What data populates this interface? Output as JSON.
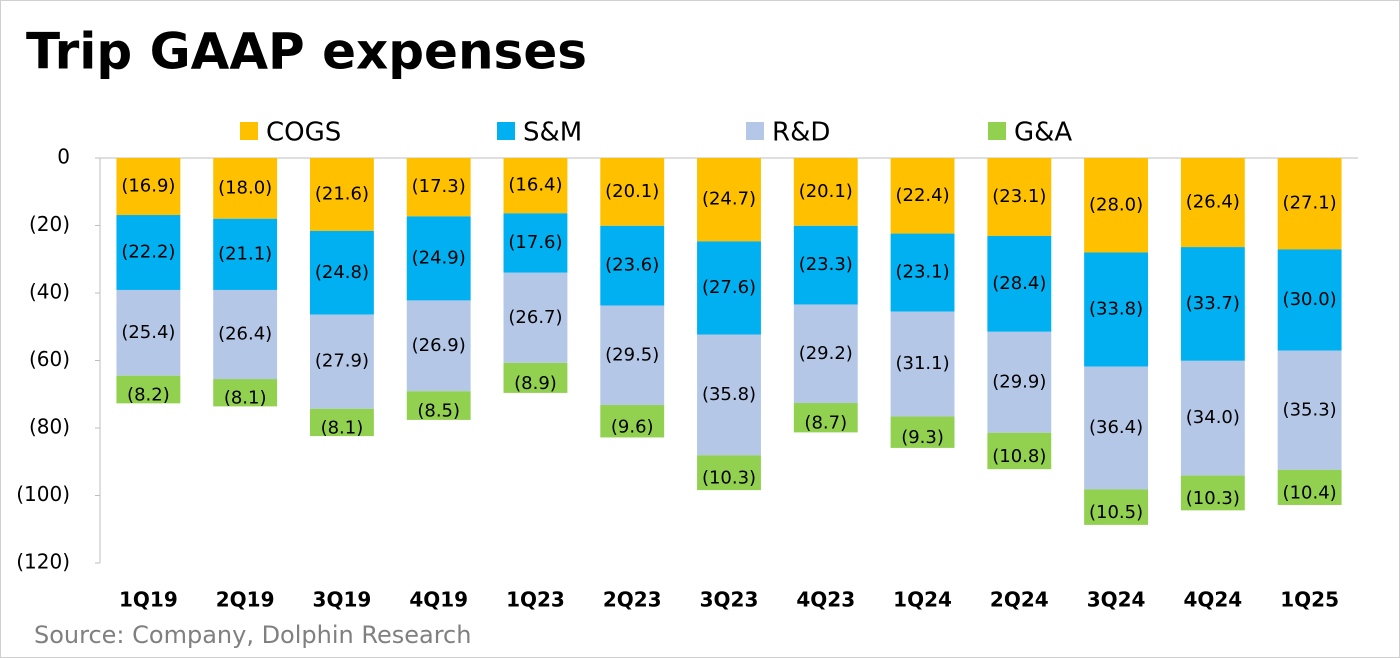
{
  "chart_data": {
    "type": "stacked-bar",
    "title": "Trip GAAP expenses",
    "source": "Source: Company, Dolphin Research",
    "categories": [
      "1Q19",
      "2Q19",
      "3Q19",
      "4Q19",
      "1Q23",
      "2Q23",
      "3Q23",
      "4Q23",
      "1Q24",
      "2Q24",
      "3Q24",
      "4Q24",
      "1Q25"
    ],
    "series": [
      {
        "name": "COGS",
        "color": "#FFC000",
        "values": [
          -16.9,
          -18.0,
          -21.6,
          -17.3,
          -16.4,
          -20.1,
          -24.7,
          -20.1,
          -22.4,
          -23.1,
          -28.0,
          -26.4,
          -27.1
        ],
        "value_labels": [
          "(16.9)",
          "(18.0)",
          "(21.6)",
          "(17.3)",
          "(16.4)",
          "(20.1)",
          "(24.7)",
          "(20.1)",
          "(22.4)",
          "(23.1)",
          "(28.0)",
          "(26.4)",
          "(27.1)"
        ]
      },
      {
        "name": "S&M",
        "color": "#00B0F0",
        "values": [
          -22.2,
          -21.1,
          -24.8,
          -24.9,
          -17.6,
          -23.6,
          -27.6,
          -23.3,
          -23.1,
          -28.4,
          -33.8,
          -33.7,
          -30.0
        ],
        "value_labels": [
          "(22.2)",
          "(21.1)",
          "(24.8)",
          "(24.9)",
          "(17.6)",
          "(23.6)",
          "(27.6)",
          "(23.3)",
          "(23.1)",
          "(28.4)",
          "(33.8)",
          "(33.7)",
          "(30.0)"
        ]
      },
      {
        "name": "R&D",
        "color": "#B4C7E7",
        "values": [
          -25.4,
          -26.4,
          -27.9,
          -26.9,
          -26.7,
          -29.5,
          -35.8,
          -29.2,
          -31.1,
          -29.9,
          -36.4,
          -34.0,
          -35.3
        ],
        "value_labels": [
          "(25.4)",
          "(26.4)",
          "(27.9)",
          "(26.9)",
          "(26.7)",
          "(29.5)",
          "(35.8)",
          "(29.2)",
          "(31.1)",
          "(29.9)",
          "(36.4)",
          "(34.0)",
          "(35.3)"
        ]
      },
      {
        "name": "G&A",
        "color": "#92D050",
        "values": [
          -8.2,
          -8.1,
          -8.1,
          -8.5,
          -8.9,
          -9.6,
          -10.3,
          -8.7,
          -9.3,
          -10.8,
          -10.5,
          -10.3,
          -10.4
        ],
        "value_labels": [
          "(8.2)",
          "(8.1)",
          "(8.1)",
          "(8.5)",
          "(8.9)",
          "(9.6)",
          "(10.3)",
          "(8.7)",
          "(9.3)",
          "(10.8)",
          "(10.5)",
          "(10.3)",
          "(10.4)"
        ]
      }
    ],
    "ylim": [
      -120,
      0
    ],
    "yticks": [
      0,
      {
        "value": -20,
        "label": "(20)"
      },
      {
        "value": -40,
        "label": "(40)"
      },
      {
        "value": -60,
        "label": "(60)"
      },
      {
        "value": -80,
        "label": "(80)"
      },
      {
        "value": -100,
        "label": "(100)"
      },
      {
        "value": -120,
        "label": "(120)"
      }
    ],
    "legend": "top"
  }
}
